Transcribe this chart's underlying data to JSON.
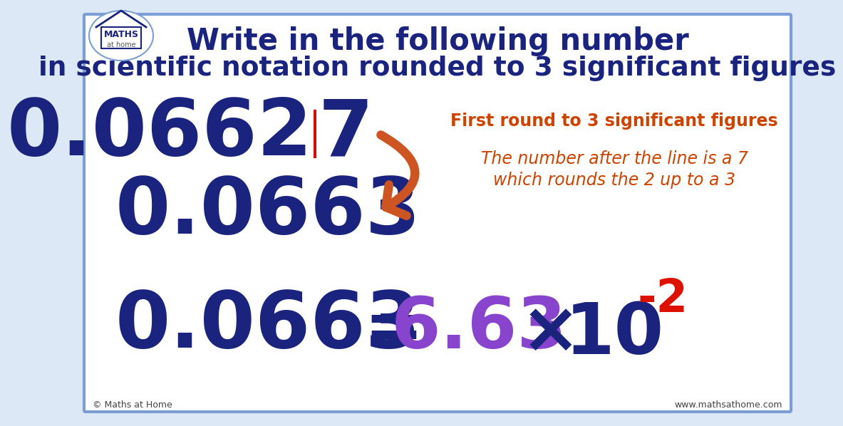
{
  "bg_color": "#ffffff",
  "border_color": "#7b9fd4",
  "outer_bg": "#dce8f5",
  "title_line1": "Write in the following number",
  "title_line2": "in scientific notation rounded to 3 significant figures",
  "title_color": "#1a237e",
  "title_fontsize1": 30,
  "title_fontsize2": 27,
  "number1_left": "0.0662",
  "number1_right": "7",
  "number1_color": "#1a237e",
  "number1_fontsize": 80,
  "vline_color": "#cc1100",
  "number2": "0.0663",
  "number2_color": "#1a237e",
  "number2_fontsize": 80,
  "number3": "0.0663",
  "number3_color": "#1a237e",
  "number3_fontsize": 80,
  "hint1": "First round to 3 significant figures",
  "hint2_line1": "The number after the line is a 7",
  "hint2_line2": "which rounds the 2 up to a 3",
  "hint_color": "#cc4400",
  "hint1_fontsize": 17,
  "hint2_fontsize": 17,
  "equals": "=",
  "equals_color": "#1a237e",
  "mantissa": "6.63",
  "mantissa_color": "#8844cc",
  "times": "×",
  "times_color": "#1a237e",
  "base": "10",
  "base_color": "#1a237e",
  "exponent": "-2",
  "exponent_color": "#dd1100",
  "sci_fontsize": 72,
  "exp_fontsize": 46,
  "arrow_color": "#cc5522",
  "logo_text1": "MATHS",
  "logo_text2": "at home",
  "footer_left": "© Maths at Home",
  "footer_right": "www.mathsathome.com",
  "footer_color": "#444444",
  "footer_fontsize": 9
}
